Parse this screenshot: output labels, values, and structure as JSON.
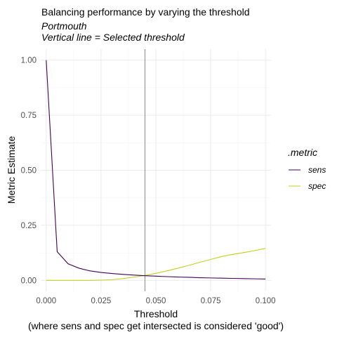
{
  "chart_data": {
    "type": "line",
    "title": "Balancing performance by varying the threshold",
    "subtitle_line1": "Portmouth",
    "subtitle_line2": "Vertical line = Selected threshold",
    "xlabel": "Threshold",
    "xlabel_caption": "(where sens and spec get intersected is considered 'good')",
    "ylabel": "Metric Estimate",
    "xlim": [
      -0.0025,
      0.1025
    ],
    "ylim": [
      -0.05,
      1.05
    ],
    "x_ticks": [
      "0.000",
      "0.025",
      "0.050",
      "0.075",
      "0.100"
    ],
    "y_ticks": [
      "0.00",
      "0.25",
      "0.50",
      "0.75",
      "1.00"
    ],
    "x_tick_values": [
      0,
      0.025,
      0.05,
      0.075,
      0.1
    ],
    "y_tick_values": [
      0,
      0.25,
      0.5,
      0.75,
      1.0
    ],
    "grid": true,
    "legend_position": "right",
    "legend_title": ".metric",
    "vline": 0.045,
    "series": [
      {
        "name": "sens",
        "color": "#440154",
        "x": [
          0,
          0.005,
          0.01,
          0.015,
          0.02,
          0.025,
          0.03,
          0.035,
          0.04,
          0.045,
          0.05,
          0.055,
          0.06,
          0.065,
          0.07,
          0.075,
          0.08,
          0.085,
          0.09,
          0.095,
          0.1
        ],
        "values": [
          1.0,
          0.13,
          0.075,
          0.055,
          0.043,
          0.036,
          0.031,
          0.027,
          0.024,
          0.021,
          0.019,
          0.017,
          0.015,
          0.014,
          0.012,
          0.011,
          0.01,
          0.009,
          0.008,
          0.007,
          0.006
        ]
      },
      {
        "name": "spec",
        "color": "#c2d11e",
        "x": [
          0,
          0.005,
          0.01,
          0.015,
          0.02,
          0.025,
          0.03,
          0.035,
          0.04,
          0.045,
          0.05,
          0.055,
          0.06,
          0.065,
          0.07,
          0.075,
          0.08,
          0.085,
          0.09,
          0.095,
          0.1
        ],
        "values": [
          0.0,
          0.0,
          0.0,
          0.0,
          0.0,
          0.001,
          0.003,
          0.008,
          0.015,
          0.022,
          0.032,
          0.043,
          0.055,
          0.068,
          0.082,
          0.095,
          0.108,
          0.118,
          0.126,
          0.135,
          0.145
        ]
      }
    ]
  }
}
